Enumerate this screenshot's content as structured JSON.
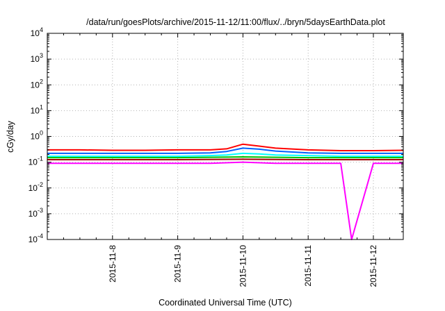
{
  "chart_data": {
    "type": "line",
    "title": "/data/run/goesPlots/archive/2015-11-12/11:00/flux/../bryn/5daysEarthData.plot",
    "xlabel": "Coordinated Universal Time (UTC)",
    "ylabel": "cGy/day",
    "yscale": "log",
    "ylim": [
      0.0001,
      10000
    ],
    "y_ticks": [
      {
        "base": "10",
        "exp": "-4",
        "value": 0.0001
      },
      {
        "base": "10",
        "exp": "-3",
        "value": 0.001
      },
      {
        "base": "10",
        "exp": "-2",
        "value": 0.01
      },
      {
        "base": "10",
        "exp": "-1",
        "value": 0.1
      },
      {
        "base": "10",
        "exp": "0",
        "value": 1
      },
      {
        "base": "10",
        "exp": "1",
        "value": 10
      },
      {
        "base": "10",
        "exp": "2",
        "value": 100
      },
      {
        "base": "10",
        "exp": "3",
        "value": 1000
      },
      {
        "base": "10",
        "exp": "4",
        "value": 10000
      }
    ],
    "xlim": [
      "2015-11-07 00:00",
      "2015-11-12 11:00"
    ],
    "x_ticks": [
      "2015-11-8",
      "2015-11-9",
      "2015-11-10",
      "2015-11-11",
      "2015-11-12"
    ],
    "grid": true,
    "series": [
      {
        "color": "#ff0000",
        "x": [
          "2015-11-07 00:00",
          "2015-11-07 12:00",
          "2015-11-08 00:00",
          "2015-11-08 12:00",
          "2015-11-09 00:00",
          "2015-11-09 12:00",
          "2015-11-09 18:00",
          "2015-11-10 00:00",
          "2015-11-10 06:00",
          "2015-11-10 12:00",
          "2015-11-11 00:00",
          "2015-11-11 12:00",
          "2015-11-12 00:00",
          "2015-11-12 11:00"
        ],
        "y": [
          0.3,
          0.3,
          0.29,
          0.29,
          0.3,
          0.3,
          0.33,
          0.5,
          0.42,
          0.35,
          0.3,
          0.28,
          0.28,
          0.29
        ]
      },
      {
        "color": "#0060ff",
        "x": [
          "2015-11-07 00:00",
          "2015-11-07 12:00",
          "2015-11-08 00:00",
          "2015-11-08 12:00",
          "2015-11-09 00:00",
          "2015-11-09 12:00",
          "2015-11-09 18:00",
          "2015-11-10 00:00",
          "2015-11-10 06:00",
          "2015-11-10 12:00",
          "2015-11-11 00:00",
          "2015-11-11 12:00",
          "2015-11-12 00:00",
          "2015-11-12 11:00"
        ],
        "y": [
          0.22,
          0.22,
          0.22,
          0.22,
          0.22,
          0.23,
          0.26,
          0.35,
          0.32,
          0.27,
          0.23,
          0.22,
          0.22,
          0.22
        ]
      },
      {
        "color": "#00ffff",
        "x": [
          "2015-11-07 00:00",
          "2015-11-07 12:00",
          "2015-11-08 00:00",
          "2015-11-08 12:00",
          "2015-11-09 00:00",
          "2015-11-09 12:00",
          "2015-11-09 18:00",
          "2015-11-10 00:00",
          "2015-11-10 06:00",
          "2015-11-10 12:00",
          "2015-11-11 00:00",
          "2015-11-11 12:00",
          "2015-11-12 00:00",
          "2015-11-12 11:00"
        ],
        "y": [
          0.17,
          0.17,
          0.17,
          0.17,
          0.17,
          0.18,
          0.19,
          0.22,
          0.21,
          0.19,
          0.18,
          0.17,
          0.17,
          0.17
        ]
      },
      {
        "color": "#00c000",
        "x": [
          "2015-11-07 00:00",
          "2015-11-08 00:00",
          "2015-11-09 00:00",
          "2015-11-10 00:00",
          "2015-11-11 00:00",
          "2015-11-12 00:00",
          "2015-11-12 11:00"
        ],
        "y": [
          0.15,
          0.15,
          0.15,
          0.16,
          0.15,
          0.15,
          0.15
        ]
      },
      {
        "color": "#a00000",
        "x": [
          "2015-11-07 00:00",
          "2015-11-08 00:00",
          "2015-11-09 00:00",
          "2015-11-10 00:00",
          "2015-11-11 00:00",
          "2015-11-12 00:00",
          "2015-11-12 11:00"
        ],
        "y": [
          0.125,
          0.125,
          0.125,
          0.13,
          0.125,
          0.125,
          0.125
        ]
      },
      {
        "color": "#ff00ff",
        "x": [
          "2015-11-07 00:00",
          "2015-11-07 12:00",
          "2015-11-08 00:00",
          "2015-11-08 12:00",
          "2015-11-09 00:00",
          "2015-11-09 12:00",
          "2015-11-10 00:00",
          "2015-11-10 12:00",
          "2015-11-11 00:00",
          "2015-11-11 12:00",
          "2015-11-11 16:00",
          "2015-11-12 00:00",
          "2015-11-12 11:00"
        ],
        "y": [
          0.09,
          0.09,
          0.09,
          0.09,
          0.09,
          0.09,
          0.1,
          0.09,
          0.09,
          0.09,
          0.0001,
          0.09,
          0.09
        ]
      }
    ]
  }
}
